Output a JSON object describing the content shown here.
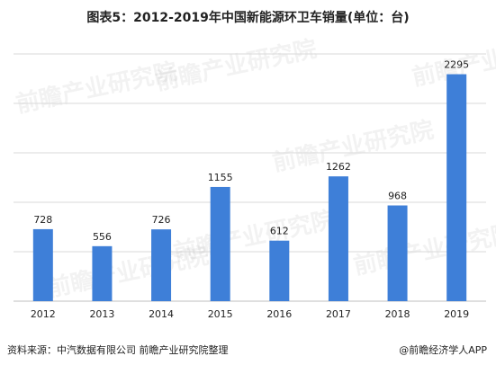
{
  "chart_data": {
    "type": "bar",
    "title": "图表5：2012-2019年中国新能源环卫车销量(单位：台)",
    "categories": [
      "2012",
      "2013",
      "2014",
      "2015",
      "2016",
      "2017",
      "2018",
      "2019"
    ],
    "values": [
      728,
      556,
      726,
      1155,
      612,
      1262,
      968,
      2295
    ],
    "xlabel": "",
    "ylabel": "",
    "ylim": [
      0,
      2500
    ],
    "grid": true,
    "legend": "none",
    "bar_color": "#3e7fd8",
    "data_labels": true
  },
  "footer": {
    "source": "资料来源：中汽数据有限公司 前瞻产业研究院整理",
    "credit": "@前瞻经济学人APP"
  },
  "watermark": {
    "text": "前瞻产业研究院"
  },
  "colors": {
    "bar": "#3e7fd8",
    "grid": "#d9d9d9",
    "axis": "#bfbfbf",
    "text": "#222222"
  }
}
